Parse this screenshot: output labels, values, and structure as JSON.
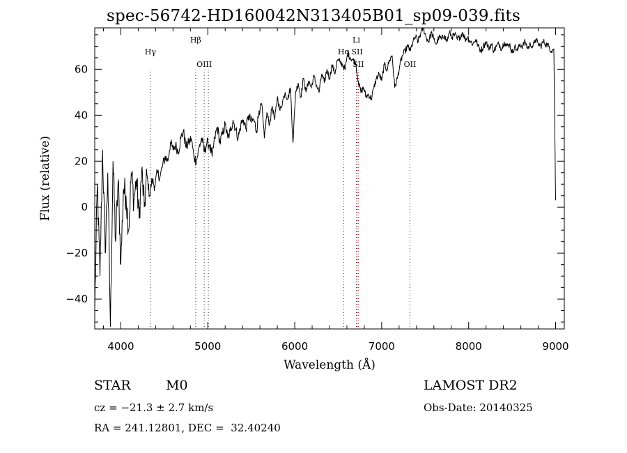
{
  "title": "spec-56742-HD160042N313405B01_sp09-039.fits",
  "chart_data": {
    "type": "line",
    "xlabel": "Wavelength (Å)",
    "ylabel": "Flux (relative)",
    "xlim": [
      3700,
      9100
    ],
    "ylim": [
      -53,
      78
    ],
    "xticks": [
      4000,
      5000,
      6000,
      7000,
      8000,
      9000
    ],
    "yticks": [
      -40,
      -20,
      0,
      20,
      40,
      60
    ],
    "grid": false,
    "series": [
      {
        "x": [
          3700,
          3730,
          3760,
          3790,
          3820,
          3850,
          3880,
          3910,
          3940,
          3970,
          4000,
          4030,
          4060,
          4090,
          4120,
          4150,
          4180,
          4210,
          4240,
          4270,
          4300,
          4330,
          4360,
          4390,
          4420,
          4450,
          4480,
          4510,
          4540,
          4570,
          4600,
          4630,
          4660,
          4690,
          4720,
          4750,
          4780,
          4810,
          4840,
          4870,
          4900,
          4930,
          4960,
          4990,
          5020,
          5050,
          5080,
          5110,
          5140,
          5170,
          5200,
          5230,
          5260,
          5290,
          5320,
          5350,
          5380,
          5410,
          5440,
          5470,
          5500,
          5530,
          5560,
          5590,
          5620,
          5650,
          5680,
          5710,
          5740,
          5770,
          5800,
          5830,
          5860,
          5890,
          5920,
          5950,
          5980,
          6010,
          6040,
          6070,
          6100,
          6130,
          6160,
          6190,
          6220,
          6250,
          6280,
          6310,
          6340,
          6370,
          6400,
          6430,
          6460,
          6490,
          6520,
          6550,
          6580,
          6610,
          6640,
          6670,
          6700,
          6730,
          6760,
          6790,
          6820,
          6850,
          6880,
          6910,
          6940,
          6970,
          7000,
          7030,
          7060,
          7090,
          7120,
          7150,
          7180,
          7210,
          7240,
          7270,
          7300,
          7330,
          7360,
          7390,
          7420,
          7450,
          7480,
          7510,
          7540,
          7570,
          7600,
          7630,
          7660,
          7690,
          7720,
          7750,
          7780,
          7810,
          7840,
          7870,
          7900,
          7930,
          7960,
          7990,
          8020,
          8050,
          8080,
          8110,
          8140,
          8170,
          8200,
          8230,
          8260,
          8290,
          8320,
          8350,
          8380,
          8410,
          8440,
          8470,
          8500,
          8530,
          8560,
          8590,
          8620,
          8650,
          8680,
          8710,
          8740,
          8770,
          8800,
          8830,
          8860,
          8890,
          8920,
          8950,
          8980,
          9000
        ],
        "y": [
          -45,
          10,
          -30,
          25,
          -20,
          15,
          -52,
          20,
          -15,
          12,
          -25,
          8,
          5,
          -10,
          15,
          3,
          12,
          -5,
          16,
          0,
          14,
          5,
          12,
          9,
          15,
          13,
          18,
          22,
          20,
          28,
          25,
          27,
          24,
          30,
          33,
          26,
          28,
          30,
          22,
          20,
          26,
          30,
          24,
          28,
          27,
          22,
          30,
          35,
          28,
          32,
          36,
          30,
          33,
          38,
          34,
          30,
          36,
          38,
          34,
          40,
          37,
          38,
          33,
          42,
          45,
          30,
          41,
          36,
          44,
          38,
          48,
          42,
          46,
          50,
          47,
          52,
          28,
          50,
          54,
          48,
          56,
          50,
          55,
          52,
          57,
          53,
          50,
          58,
          54,
          60,
          56,
          62,
          58,
          64,
          63,
          62,
          60,
          67,
          65,
          64,
          63,
          55,
          50,
          52,
          48,
          49,
          47,
          52,
          56,
          58,
          55,
          62,
          60,
          64,
          66,
          52,
          56,
          62,
          66,
          68,
          70,
          68,
          72,
          74,
          72,
          76,
          78,
          74,
          72,
          76,
          73,
          71,
          74,
          73,
          75,
          72,
          76,
          74,
          75,
          73,
          74,
          76,
          73,
          74,
          72,
          71,
          73,
          70,
          68,
          70,
          72,
          69,
          71,
          68,
          70,
          71,
          69,
          72,
          70,
          71,
          67,
          70,
          68,
          71,
          70,
          72,
          69,
          71,
          70,
          73,
          71,
          70,
          72,
          71,
          70,
          68,
          69,
          3
        ]
      }
    ],
    "lines": [
      {
        "label": "Hγ",
        "x": 4340
      },
      {
        "label": "Hβ",
        "x": 4861
      },
      {
        "label": "OIII",
        "x": 4959
      },
      {
        "label": "OIII",
        "x": 5007
      },
      {
        "label": "Hα",
        "x": 6563
      },
      {
        "label": "Li",
        "x": 6708
      },
      {
        "label": "SII",
        "x": 6717
      },
      {
        "label": "SII",
        "x": 6731
      },
      {
        "label": "OII",
        "x": 7325
      }
    ]
  },
  "info": {
    "class": "STAR",
    "subclass": "M0",
    "survey": "LAMOST DR2",
    "cz": "cz = −21.3 ± 2.7 km/s",
    "obs_date": "Obs-Date: 20140325",
    "radec": "RA = 241.12801, DEC =  32.40240"
  }
}
